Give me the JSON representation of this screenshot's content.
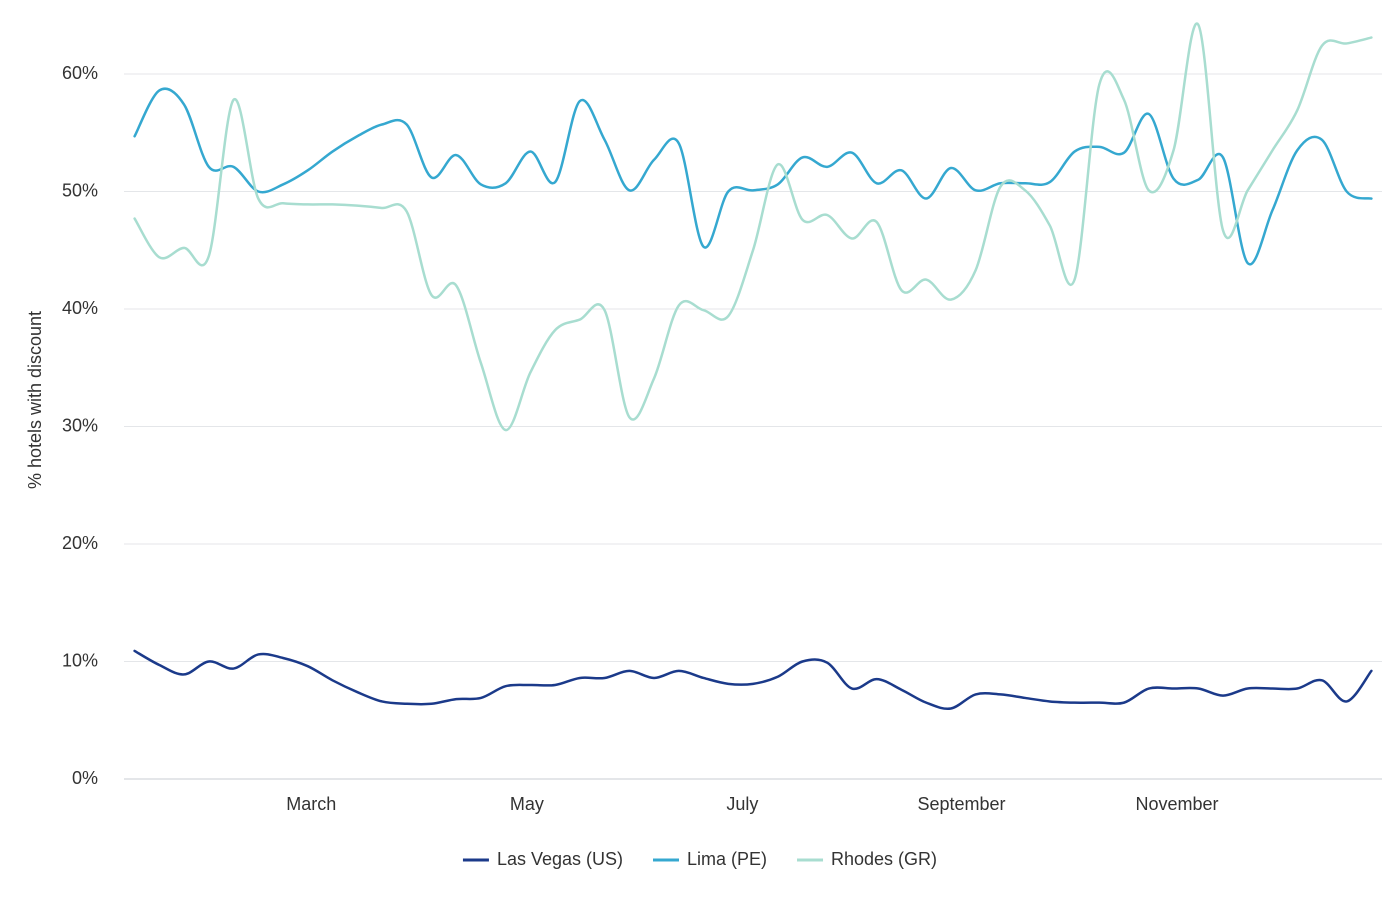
{
  "chart_data": {
    "type": "line",
    "ylabel": "% hotels with discount",
    "x": [
      9,
      16,
      23,
      30,
      37,
      44,
      51,
      58,
      65,
      72,
      79,
      86,
      93,
      100,
      107,
      114,
      121,
      128,
      135,
      142,
      149,
      156,
      163,
      170,
      177,
      184,
      191,
      198,
      205,
      212,
      219,
      226,
      233,
      240,
      247,
      254,
      261,
      268,
      275,
      282,
      289,
      296,
      303,
      310,
      317,
      324,
      331,
      338,
      345,
      352,
      359
    ],
    "xlim": [
      6,
      362
    ],
    "xticks": [
      {
        "value": 59,
        "label": "March"
      },
      {
        "value": 120,
        "label": "May"
      },
      {
        "value": 181,
        "label": "July"
      },
      {
        "value": 243,
        "label": "September"
      },
      {
        "value": 304,
        "label": "November"
      }
    ],
    "ylim": [
      0,
      65
    ],
    "yticks": [
      {
        "value": 0,
        "label": "0%"
      },
      {
        "value": 10,
        "label": "10%"
      },
      {
        "value": 20,
        "label": "20%"
      },
      {
        "value": 30,
        "label": "30%"
      },
      {
        "value": 40,
        "label": "40%"
      },
      {
        "value": 50,
        "label": "50%"
      },
      {
        "value": 60,
        "label": "60%"
      }
    ],
    "grid": true,
    "legend": "bottom",
    "series": [
      {
        "name": "Las Vegas (US)",
        "color": "#1b3a8a",
        "values": [
          10.9,
          9.7,
          8.9,
          10.0,
          9.4,
          10.6,
          10.3,
          9.6,
          8.4,
          7.4,
          6.6,
          6.4,
          6.4,
          6.8,
          6.9,
          7.9,
          8.0,
          8.0,
          8.6,
          8.6,
          9.2,
          8.6,
          9.2,
          8.6,
          8.1,
          8.1,
          8.7,
          10.0,
          9.9,
          7.7,
          8.5,
          7.6,
          6.5,
          6.0,
          7.2,
          7.2,
          6.9,
          6.6,
          6.5,
          6.5,
          6.5,
          7.7,
          7.7,
          7.7,
          7.1,
          7.7,
          7.7,
          7.7,
          8.4,
          6.6,
          9.2
        ]
      },
      {
        "name": "Lima (PE)",
        "color": "#35a8d0",
        "values": [
          54.7,
          58.6,
          57.4,
          52.1,
          52.1,
          50.0,
          50.6,
          51.8,
          53.4,
          54.7,
          55.7,
          55.7,
          51.2,
          53.1,
          50.6,
          50.7,
          53.4,
          50.8,
          57.7,
          54.4,
          50.1,
          52.7,
          54.1,
          45.3,
          50.0,
          50.1,
          50.6,
          52.9,
          52.1,
          53.3,
          50.7,
          51.8,
          49.4,
          52.0,
          50.1,
          50.7,
          50.7,
          50.8,
          53.4,
          53.8,
          53.3,
          56.6,
          51.1,
          51.0,
          52.9,
          43.9,
          48.4,
          53.5,
          54.4,
          50.0,
          49.4
        ]
      },
      {
        "name": "Rhodes (GR)",
        "color": "#a8ddd0",
        "values": [
          47.7,
          44.4,
          45.2,
          44.5,
          57.8,
          49.4,
          49.0,
          48.9,
          48.9,
          48.8,
          48.6,
          48.3,
          41.2,
          42.0,
          35.4,
          29.7,
          34.6,
          38.2,
          39.1,
          39.9,
          30.8,
          34.1,
          40.3,
          39.9,
          39.4,
          45.0,
          52.3,
          47.6,
          48.0,
          46.0,
          47.4,
          41.6,
          42.5,
          40.8,
          43.3,
          50.4,
          50.1,
          47.1,
          42.5,
          59.1,
          57.8,
          50.1,
          53.5,
          64.2,
          46.7,
          50.1,
          53.5,
          56.9,
          62.4,
          62.6,
          63.1
        ]
      }
    ]
  }
}
